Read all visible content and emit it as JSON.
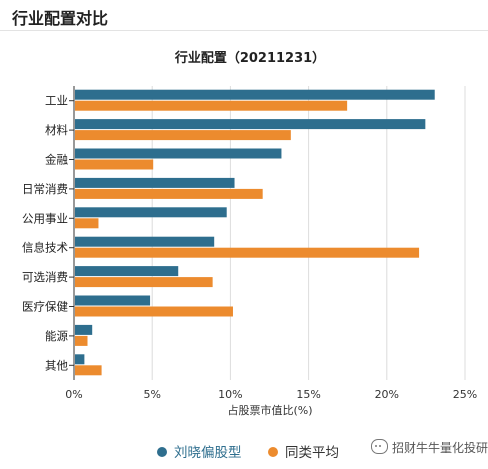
{
  "header": {
    "title": "行业配置对比"
  },
  "watermark": {
    "text": "招财牛牛量化投研"
  },
  "chart_data": {
    "type": "bar",
    "orientation": "horizontal",
    "title": "行业配置（20211231）",
    "xlabel": "占股票市值比(%)",
    "ylabel": "",
    "xlim": [
      0,
      25
    ],
    "xticks": [
      "0%",
      "5%",
      "10%",
      "15%",
      "20%",
      "25%"
    ],
    "categories": [
      "工业",
      "材料",
      "金融",
      "日常消费",
      "公用事业",
      "信息技术",
      "可选消费",
      "医疗保健",
      "能源",
      "其他"
    ],
    "series": [
      {
        "name": "刘晓偏股型",
        "color": "#2e6e8e",
        "values": [
          23.0,
          22.4,
          13.2,
          10.2,
          9.7,
          8.9,
          6.6,
          4.8,
          1.1,
          0.6
        ]
      },
      {
        "name": "同类平均",
        "color": "#ec8b2e",
        "values": [
          17.4,
          13.8,
          5.0,
          12.0,
          1.5,
          22.0,
          8.8,
          10.1,
          0.8,
          1.7
        ]
      }
    ],
    "legend_position": "bottom",
    "grid": true
  }
}
